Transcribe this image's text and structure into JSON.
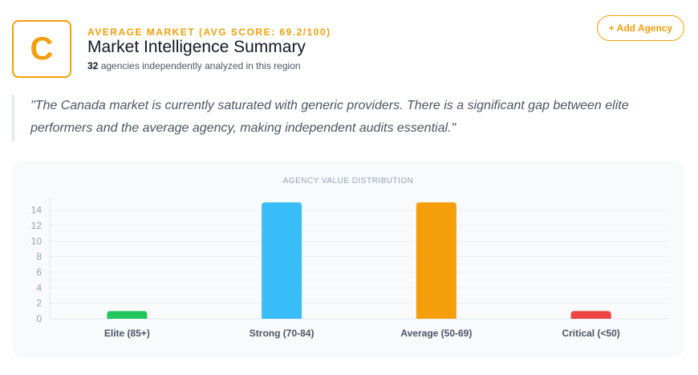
{
  "header": {
    "grade": "C",
    "tier_label": "AVERAGE MARKET (AVG SCORE: 69.2/100)",
    "title": "Market Intelligence Summary",
    "agency_count": "32",
    "subtitle_rest": " agencies independently analyzed in this region",
    "add_button": "+ Add Agency"
  },
  "quote": "\"The Canada market is currently saturated with generic providers. There is a significant gap between elite performers and the average agency, making independent audits essential.\"",
  "colors": {
    "accent": "#f59e0b",
    "bars": [
      "#22c55e",
      "#38bdf8",
      "#f59e0b",
      "#ef4444"
    ]
  },
  "chart_data": {
    "type": "bar",
    "title": "AGENCY VALUE DISTRIBUTION",
    "categories": [
      "Elite (85+)",
      "Strong (70-84)",
      "Average (50-69)",
      "Critical (<50)"
    ],
    "values": [
      1,
      15,
      15,
      1
    ],
    "ylim": [
      0,
      15
    ],
    "yticks": [
      0,
      2,
      4,
      6,
      8,
      10,
      12,
      14
    ],
    "xlabel": "",
    "ylabel": "",
    "grid": true,
    "legend": "none"
  }
}
